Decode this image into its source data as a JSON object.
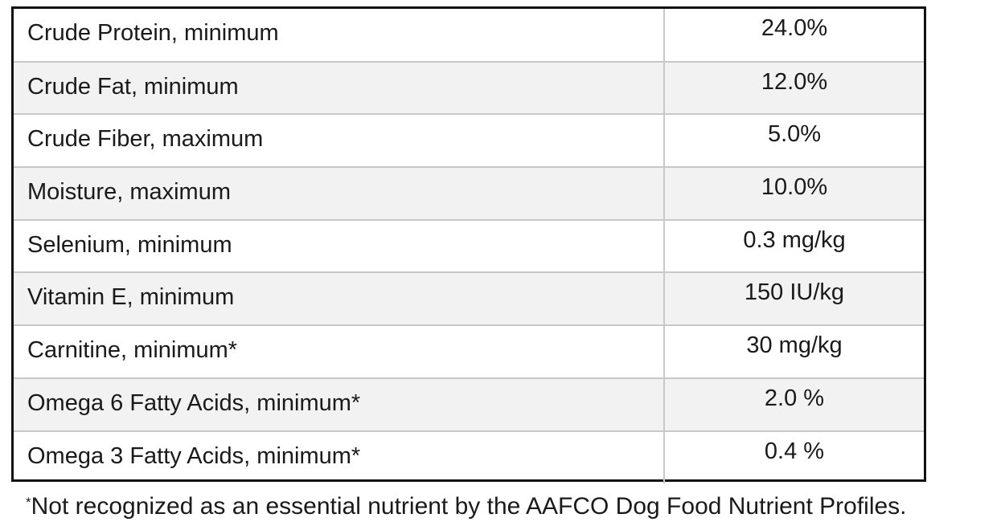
{
  "rows": [
    {
      "nutrient": "Crude Protein, minimum",
      "amount": "24.0%"
    },
    {
      "nutrient": "Crude Fat, minimum",
      "amount": "12.0%"
    },
    {
      "nutrient": "Crude Fiber, maximum",
      "amount": "5.0%"
    },
    {
      "nutrient": "Moisture, maximum",
      "amount": "10.0%"
    },
    {
      "nutrient": "Selenium, minimum",
      "amount": "0.3 mg/kg"
    },
    {
      "nutrient": "Vitamin E, minimum",
      "amount": "150 IU/kg"
    },
    {
      "nutrient": "Carnitine, minimum*",
      "amount": "30 mg/kg"
    },
    {
      "nutrient": "Omega 6 Fatty Acids, minimum*",
      "amount": "2.0 %"
    },
    {
      "nutrient": "Omega 3 Fatty Acids, minimum*",
      "amount": "0.4 %"
    }
  ],
  "footnote": {
    "marker": "*",
    "text": "Not recognized as an essential nutrient by the AAFCO Dog Food Nutrient Profiles."
  }
}
